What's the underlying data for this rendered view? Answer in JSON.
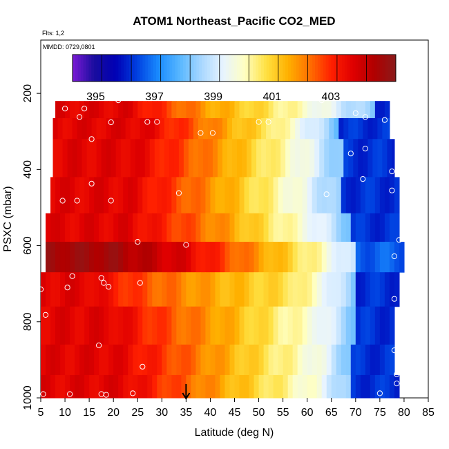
{
  "chart_data": {
    "type": "heatmap",
    "title": "ATOM1 Northeast_Pacific CO2_MED",
    "flights_note": "Flts: 1,2",
    "dates_note": "MMDD: 0729,0801",
    "xlabel": "Latitude (deg N)",
    "ylabel": "PSXC (mbar)",
    "xlim": [
      5,
      85
    ],
    "ylim": [
      1000,
      60
    ],
    "x_ticks": [
      5,
      10,
      15,
      20,
      25,
      30,
      35,
      40,
      45,
      50,
      55,
      60,
      65,
      70,
      75,
      80,
      85
    ],
    "y_ticks": [
      200,
      400,
      600,
      800,
      1000
    ],
    "colorbar": {
      "min": 394,
      "max": 405,
      "tick_values": [
        395,
        397,
        399,
        401,
        403
      ],
      "colors": [
        "#7b1ad6",
        "#1a0d9e",
        "#0000b4",
        "#0040e0",
        "#1a8cff",
        "#5ab8ff",
        "#aad8ff",
        "#e8f4ff",
        "#ffffc0",
        "#ffe040",
        "#ffb000",
        "#ff7000",
        "#ff2000",
        "#e00000",
        "#b00000",
        "#8a1a1a"
      ]
    },
    "pressure_bands": [
      {
        "p_top": 220,
        "p_bot": 265,
        "lat_min": 8.0,
        "lat_max": 77.0,
        "breaks": [
          23,
          31,
          40,
          52,
          62,
          74
        ]
      },
      {
        "p_top": 265,
        "p_bot": 320,
        "lat_min": 7.5,
        "lat_max": 77.0,
        "breaks": [
          26,
          35,
          43,
          52,
          58,
          66
        ]
      },
      {
        "p_top": 320,
        "p_bot": 420,
        "lat_min": 7.5,
        "lat_max": 78.0,
        "breaks": [
          24,
          34,
          43,
          51,
          59,
          67
        ]
      },
      {
        "p_top": 420,
        "p_bot": 515,
        "lat_min": 7.0,
        "lat_max": 79.0,
        "breaks": [
          23,
          33,
          42,
          50,
          58,
          67
        ]
      },
      {
        "p_top": 515,
        "p_bot": 590,
        "lat_min": 6.0,
        "lat_max": 79.0,
        "breaks": [
          23,
          34,
          44,
          52,
          60,
          69
        ]
      },
      {
        "p_top": 590,
        "p_bot": 670,
        "lat_min": 6.0,
        "lat_max": 80.0,
        "breaks": [
          20,
          35,
          47,
          55,
          62,
          70
        ]
      },
      {
        "p_top": 670,
        "p_bot": 760,
        "lat_min": 5.0,
        "lat_max": 79.0,
        "breaks": [
          15,
          25,
          39,
          57,
          63,
          70
        ]
      },
      {
        "p_top": 760,
        "p_bot": 860,
        "lat_min": 5.0,
        "lat_max": 78.0,
        "breaks": [
          20,
          30,
          42,
          52,
          62,
          70
        ]
      },
      {
        "p_top": 860,
        "p_bot": 940,
        "lat_min": 5.0,
        "lat_max": 78.0,
        "breaks": [
          20,
          32,
          42,
          52,
          62,
          69
        ]
      },
      {
        "p_top": 940,
        "p_bot": 1000,
        "lat_min": 5.0,
        "lat_max": 79.0,
        "breaks": [
          22,
          32,
          42,
          52,
          62,
          69
        ]
      }
    ],
    "band_values": [
      403.5,
      402.5,
      401.5,
      400.5,
      399.5,
      398,
      396
    ],
    "band_values_high": [
      404.5,
      403.5,
      402,
      401,
      400,
      398.5,
      396.5
    ],
    "observations": [
      {
        "lat": 21,
        "p": 218
      },
      {
        "lat": 63,
        "p": 218
      },
      {
        "lat": 10,
        "p": 240
      },
      {
        "lat": 14,
        "p": 240
      },
      {
        "lat": 13,
        "p": 262
      },
      {
        "lat": 70,
        "p": 252
      },
      {
        "lat": 72,
        "p": 262
      },
      {
        "lat": 19.5,
        "p": 276
      },
      {
        "lat": 27,
        "p": 275
      },
      {
        "lat": 29,
        "p": 275
      },
      {
        "lat": 50,
        "p": 275
      },
      {
        "lat": 52,
        "p": 275
      },
      {
        "lat": 76,
        "p": 270
      },
      {
        "lat": 38,
        "p": 304
      },
      {
        "lat": 40.5,
        "p": 304
      },
      {
        "lat": 15.5,
        "p": 320
      },
      {
        "lat": 72,
        "p": 345
      },
      {
        "lat": 69,
        "p": 358
      },
      {
        "lat": 77.5,
        "p": 405
      },
      {
        "lat": 71.5,
        "p": 425
      },
      {
        "lat": 15.5,
        "p": 437
      },
      {
        "lat": 33.5,
        "p": 462
      },
      {
        "lat": 64,
        "p": 465
      },
      {
        "lat": 77.5,
        "p": 455
      },
      {
        "lat": 9.5,
        "p": 482
      },
      {
        "lat": 12.5,
        "p": 482
      },
      {
        "lat": 19.5,
        "p": 482
      },
      {
        "lat": 25,
        "p": 590
      },
      {
        "lat": 35,
        "p": 598
      },
      {
        "lat": 79,
        "p": 585
      },
      {
        "lat": 78,
        "p": 628
      },
      {
        "lat": 11.5,
        "p": 680
      },
      {
        "lat": 17.5,
        "p": 685
      },
      {
        "lat": 18,
        "p": 698
      },
      {
        "lat": 10.5,
        "p": 710
      },
      {
        "lat": 19,
        "p": 708
      },
      {
        "lat": 25.5,
        "p": 698
      },
      {
        "lat": 5,
        "p": 715
      },
      {
        "lat": 78,
        "p": 740
      },
      {
        "lat": 6,
        "p": 782
      },
      {
        "lat": 17,
        "p": 862
      },
      {
        "lat": 78,
        "p": 875
      },
      {
        "lat": 26,
        "p": 918
      },
      {
        "lat": 78.5,
        "p": 938
      },
      {
        "lat": 78.5,
        "p": 962
      },
      {
        "lat": 5.5,
        "p": 990
      },
      {
        "lat": 11,
        "p": 990
      },
      {
        "lat": 17.5,
        "p": 990
      },
      {
        "lat": 18.5,
        "p": 992
      },
      {
        "lat": 24,
        "p": 988
      },
      {
        "lat": 75,
        "p": 988
      }
    ],
    "marker_arrow_lat": 35
  }
}
